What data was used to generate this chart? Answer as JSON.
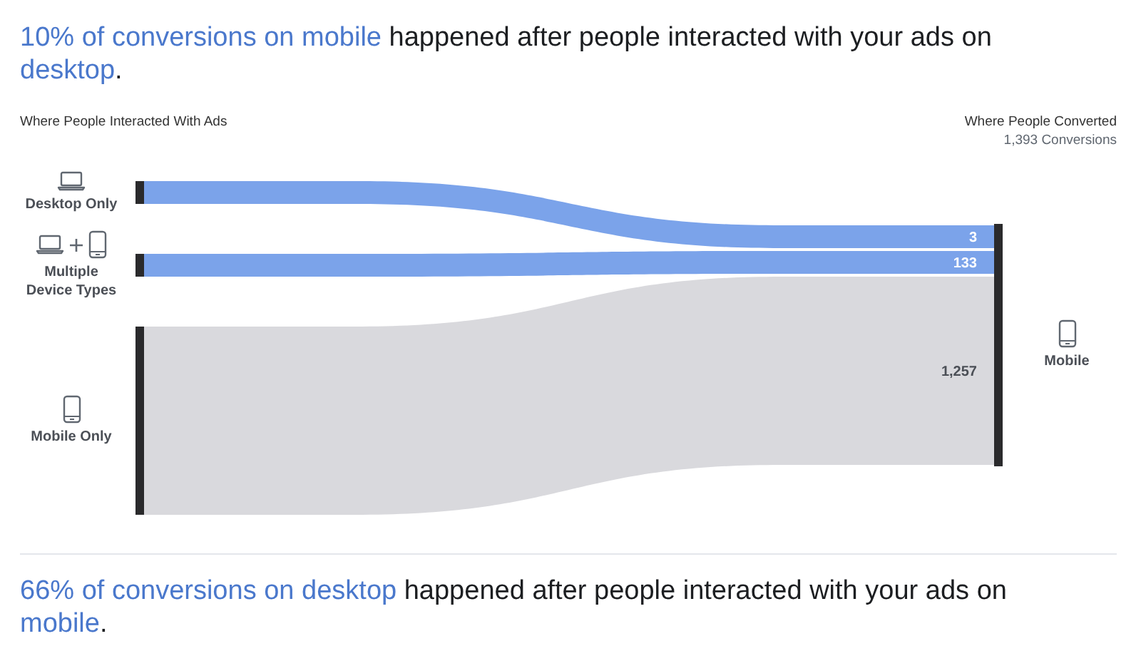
{
  "chart_data": {
    "type": "other",
    "title": "10% of conversions on mobile happened after people interacted with your ads on desktop.",
    "categories": [
      "Desktop Only",
      "Multiple Device Types",
      "Mobile Only"
    ],
    "series": [
      {
        "name": "Mobile",
        "values": [
          3,
          133,
          1257
        ],
        "value_labels": [
          "3",
          "133",
          "1,257"
        ]
      }
    ],
    "colors": [
      "#7ba3ea",
      "#7ba3ea",
      "#d9d9dd"
    ],
    "annotations": [
      "Where People Interacted With Ads",
      "Where People Converted",
      "1,393 Conversions",
      "66% of conversions on desktop happened after people interacted with your ads on mobile."
    ]
  }
}
